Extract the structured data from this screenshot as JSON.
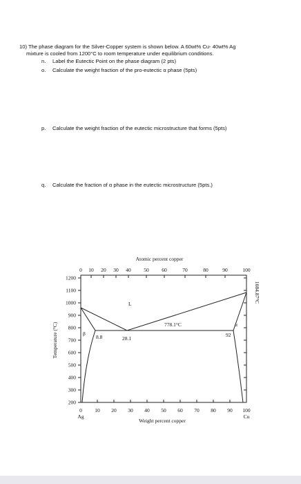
{
  "question": {
    "text": "10) The phase diagram for the Silver-Copper system is shown below.  A 60wt% Cu- 40wt% Ag mixture is cooled from 1200°C to room temperature under equilibrium conditions.",
    "parts": [
      {
        "label": "n.",
        "text": "Label the Eutectic Point on the phase diagram (2 pts)"
      },
      {
        "label": "o.",
        "text": "Calculate the weight fraction of the pro-eutectic α phase (5pts)"
      },
      {
        "label": "p.",
        "text": "Calculate the weight fraction of the eutectic microstructure that forms (5pts)"
      },
      {
        "label": "q.",
        "text": "Calculate the fraction of α phase in the eutectic microstructure (5pts.)"
      }
    ]
  },
  "figure": {
    "top_axis_label": "Atomic percent copper",
    "top_ticks": [
      "0",
      "10",
      "20",
      "30",
      "40",
      "50",
      "60",
      "70",
      "80",
      "90",
      "100"
    ],
    "bottom_axis_label": "Weight percent copper",
    "bottom_ticks": [
      "0",
      "10",
      "20",
      "30",
      "40",
      "50",
      "60",
      "70",
      "80",
      "90",
      "100"
    ],
    "y_axis_label": "Temperature (°C)",
    "y_ticks": [
      "1200",
      "1100",
      "1000",
      "900",
      "800",
      "700",
      "600",
      "500",
      "400",
      "300",
      "200"
    ],
    "labels": {
      "liquid": "L",
      "beta": "β",
      "alpha": "α",
      "eutectic_temp": "778.1°C",
      "left_comp": "8.8",
      "eutectic_comp": "28.1",
      "right_comp": "92",
      "cu_melting": "1084.87°C",
      "ag": "Ag",
      "cu": "Cu"
    }
  }
}
